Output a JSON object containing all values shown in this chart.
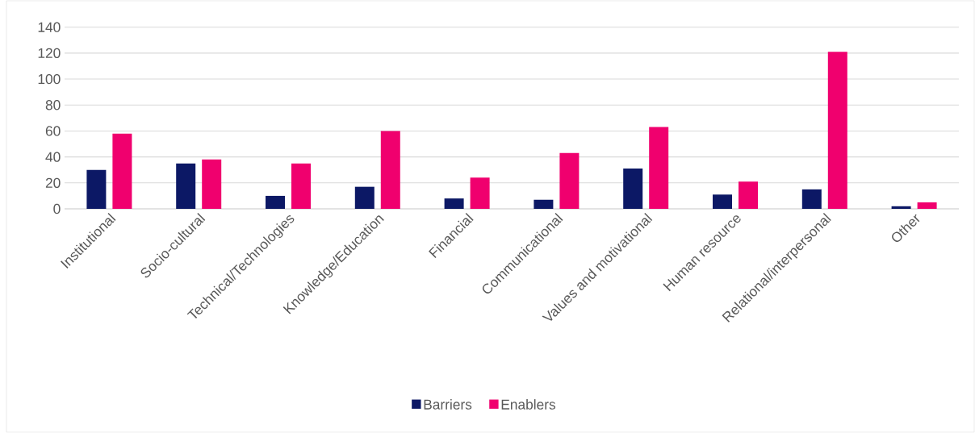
{
  "chart_data": {
    "type": "bar",
    "categories": [
      "Institutional",
      "Socio-cultural",
      "Technical/Technologies",
      "Knowledge/Education",
      "Financial",
      "Communicational",
      "Values and motivational",
      "Human resource",
      "Relational/interpersonal",
      "Other"
    ],
    "series": [
      {
        "name": "Barriers",
        "color": "#0c1865",
        "values": [
          30,
          35,
          10,
          17,
          8,
          7,
          31,
          11,
          15,
          2
        ]
      },
      {
        "name": "Enablers",
        "color": "#f0006e",
        "values": [
          58,
          38,
          35,
          60,
          24,
          43,
          63,
          21,
          121,
          5
        ]
      }
    ],
    "ylim": [
      0,
      140
    ],
    "yticks": [
      0,
      20,
      40,
      60,
      80,
      100,
      120,
      140
    ],
    "grid": "y",
    "legend": "bottom"
  }
}
